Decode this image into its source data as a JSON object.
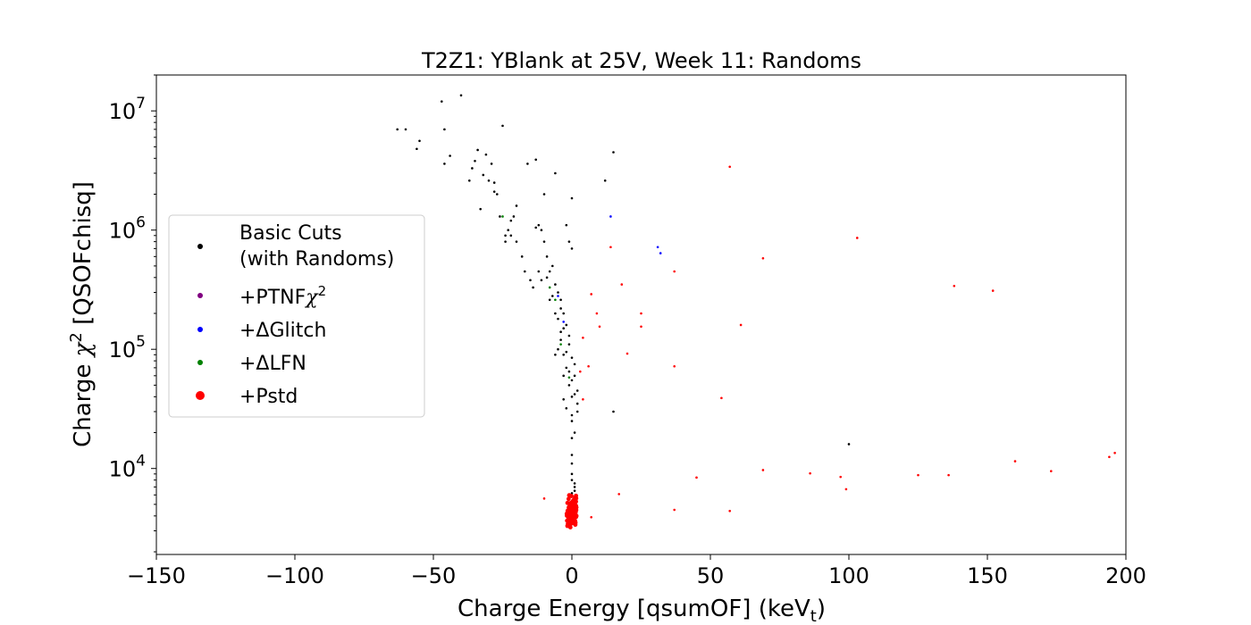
{
  "chart_data": {
    "type": "scatter",
    "title": "T2Z1: YBlank at 25V, Week 11: Randoms",
    "xlabel": "Charge Energy [qsumOF] (keV",
    "xlabel_sub": "t",
    "xlabel_end": ")",
    "ylabel": "Charge ",
    "ylabel_chi": "χ",
    "ylabel_sup": "2",
    "ylabel_end": " [QSOFchisq]",
    "xlim": [
      -150,
      200
    ],
    "ylim": [
      1900,
      20000000
    ],
    "yscale": "log",
    "grid": false,
    "legend_position": "center-left",
    "x_ticks": [
      {
        "value": -150,
        "label": "−150"
      },
      {
        "value": -100,
        "label": "−100"
      },
      {
        "value": -50,
        "label": "−50"
      },
      {
        "value": 0,
        "label": "0"
      },
      {
        "value": 50,
        "label": "50"
      },
      {
        "value": 100,
        "label": "100"
      },
      {
        "value": 150,
        "label": "150"
      },
      {
        "value": 200,
        "label": "200"
      }
    ],
    "y_ticks": [
      {
        "value": 10000,
        "base": "10",
        "exp": "4"
      },
      {
        "value": 100000,
        "base": "10",
        "exp": "5"
      },
      {
        "value": 1000000,
        "base": "10",
        "exp": "6"
      },
      {
        "value": 10000000,
        "base": "10",
        "exp": "7"
      }
    ],
    "legend": [
      {
        "line1": "Basic Cuts",
        "line2": "(with Randoms)",
        "color": "#000000"
      },
      {
        "line1": "+PTNF",
        "chi": "χ",
        "sup": "2",
        "color": "#800080"
      },
      {
        "line1": "+ΔGlitch",
        "color": "#0000ff"
      },
      {
        "line1": "+ΔLFN",
        "color": "#008000"
      },
      {
        "line1": "+Pstd",
        "color": "#ff0000"
      }
    ],
    "series": [
      {
        "name": "Basic Cuts (with Randoms)",
        "color": "#000000",
        "points": [
          [
            -63,
            7000000
          ],
          [
            -60,
            7000000
          ],
          [
            -56,
            4800000
          ],
          [
            -55,
            5600000
          ],
          [
            -47,
            12000000
          ],
          [
            -46,
            7000000
          ],
          [
            -46,
            3600000
          ],
          [
            -44,
            4200000
          ],
          [
            -40,
            13500000
          ],
          [
            -37,
            2600000
          ],
          [
            -36,
            3300000
          ],
          [
            -35,
            3800000
          ],
          [
            -34,
            4700000
          ],
          [
            -33,
            1500000
          ],
          [
            -32,
            2900000
          ],
          [
            -31,
            4300000
          ],
          [
            -30,
            2600000
          ],
          [
            -29,
            3600000
          ],
          [
            -28,
            2500000
          ],
          [
            -28,
            2100000
          ],
          [
            -27,
            2000000
          ],
          [
            -26,
            1300000
          ],
          [
            -25,
            7500000
          ],
          [
            -24,
            900000
          ],
          [
            -23,
            1000000
          ],
          [
            -22,
            1200000
          ],
          [
            -21,
            1300000
          ],
          [
            -20,
            800000
          ],
          [
            -18,
            600000
          ],
          [
            -17,
            450000
          ],
          [
            -16,
            3600000
          ],
          [
            -15,
            380000
          ],
          [
            -14,
            330000
          ],
          [
            -13,
            3900000
          ],
          [
            -12,
            1100000
          ],
          [
            -11,
            1000000
          ],
          [
            -10,
            800000
          ],
          [
            -9,
            600000
          ],
          [
            -8,
            450000
          ],
          [
            -7,
            500000
          ],
          [
            -6,
            350000
          ],
          [
            -5,
            300000
          ],
          [
            -5,
            180000
          ],
          [
            -4,
            260000
          ],
          [
            -4,
            120000
          ],
          [
            -3,
            200000
          ],
          [
            -3,
            90000
          ],
          [
            -2,
            160000
          ],
          [
            -2,
            70000
          ],
          [
            -1,
            130000
          ],
          [
            -1,
            50000
          ],
          [
            0,
            40000
          ],
          [
            0,
            25000
          ],
          [
            0,
            18000
          ],
          [
            0,
            13000
          ],
          [
            0,
            11000
          ],
          [
            0,
            9000
          ],
          [
            0,
            8000
          ],
          [
            1,
            7500
          ],
          [
            1,
            7000
          ],
          [
            1,
            6500
          ],
          [
            0,
            6200
          ],
          [
            -1,
            6000
          ],
          [
            1,
            20000
          ],
          [
            2,
            30000
          ],
          [
            2,
            45000
          ],
          [
            1,
            60000
          ],
          [
            2,
            35000
          ],
          [
            -2,
            1100000
          ],
          [
            -1,
            800000
          ],
          [
            0,
            700000
          ],
          [
            -6,
            3000000
          ],
          [
            -10,
            2000000
          ],
          [
            -20,
            1600000
          ],
          [
            -22,
            900000
          ],
          [
            -24,
            800000
          ],
          [
            0,
            1850000
          ],
          [
            12,
            2600000
          ],
          [
            15,
            4500000
          ],
          [
            15,
            30000
          ],
          [
            -8,
            260000
          ],
          [
            -6,
            200000
          ],
          [
            -3,
            150000
          ],
          [
            -1,
            110000
          ],
          [
            -9,
            400000
          ],
          [
            -7,
            280000
          ],
          [
            -4,
            220000
          ],
          [
            -2,
            95000
          ],
          [
            0,
            85000
          ],
          [
            1,
            75000
          ],
          [
            -1,
            65000
          ],
          [
            0,
            55000
          ],
          [
            1,
            42000
          ],
          [
            -3,
            38000
          ],
          [
            -2,
            32000
          ],
          [
            0,
            28000
          ],
          [
            -6,
            90000
          ],
          [
            -5,
            100000
          ],
          [
            -4,
            140000
          ],
          [
            -3,
            60000
          ],
          [
            -11,
            380000
          ],
          [
            -12,
            450000
          ],
          [
            -13,
            1050000
          ],
          [
            100,
            16000
          ]
        ]
      },
      {
        "name": "+PTNFχ2",
        "color": "#800080",
        "points": []
      },
      {
        "name": "+ΔGlitch",
        "color": "#0000ff",
        "points": [
          [
            -5,
            280000
          ],
          [
            -3,
            170000
          ],
          [
            14,
            1300000
          ],
          [
            31,
            720000
          ],
          [
            32,
            640000
          ]
        ]
      },
      {
        "name": "+ΔLFN",
        "color": "#008000",
        "points": [
          [
            -25,
            1300000
          ],
          [
            -6,
            260000
          ],
          [
            -8,
            330000
          ],
          [
            -4,
            110000
          ],
          [
            -1,
            58000
          ]
        ]
      },
      {
        "name": "+Pstd",
        "color": "#ff0000",
        "points": [
          [
            57,
            3400000
          ],
          [
            103,
            860000
          ],
          [
            69,
            580000
          ],
          [
            37,
            450000
          ],
          [
            138,
            340000
          ],
          [
            152,
            310000
          ],
          [
            7,
            290000
          ],
          [
            18,
            350000
          ],
          [
            25,
            200000
          ],
          [
            9,
            200000
          ],
          [
            25,
            155000
          ],
          [
            61,
            160000
          ],
          [
            10,
            155000
          ],
          [
            4,
            125000
          ],
          [
            20,
            92000
          ],
          [
            37,
            72000
          ],
          [
            6,
            72000
          ],
          [
            3,
            65000
          ],
          [
            54,
            39000
          ],
          [
            14,
            720000
          ],
          [
            69,
            9700
          ],
          [
            86,
            9100
          ],
          [
            97,
            8500
          ],
          [
            45,
            8400
          ],
          [
            99,
            6700
          ],
          [
            125,
            8800
          ],
          [
            136,
            8800
          ],
          [
            160,
            11500
          ],
          [
            173,
            9500
          ],
          [
            194,
            12500
          ],
          [
            196,
            13500
          ],
          [
            -10,
            5600
          ],
          [
            17,
            6100
          ],
          [
            7,
            3900
          ],
          [
            37,
            4500
          ],
          [
            57,
            4400
          ],
          [
            4,
            38000
          ]
        ]
      }
    ],
    "core_cluster": {
      "name": "+Pstd",
      "color": "#ff0000",
      "x_range": [
        -2,
        2
      ],
      "y_range": [
        3200,
        6000
      ],
      "count": 140
    }
  }
}
